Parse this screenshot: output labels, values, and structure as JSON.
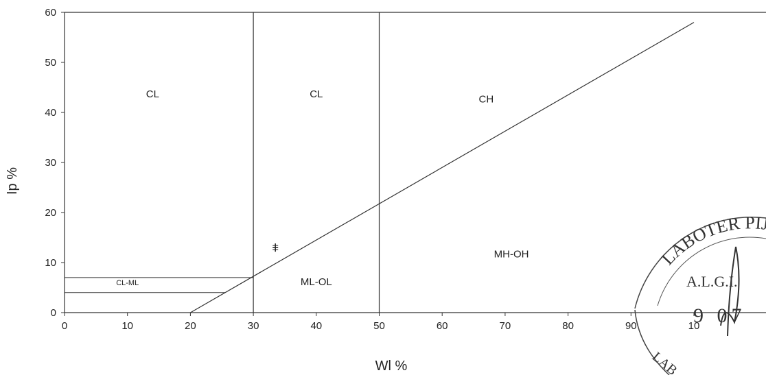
{
  "chart_data": {
    "type": "line",
    "title": "",
    "xlabel": "Wl %",
    "ylabel": "Ip %",
    "xlim": [
      0,
      100
    ],
    "ylim": [
      0,
      60
    ],
    "x_ticks": [
      "0",
      "10",
      "20",
      "30",
      "40",
      "50",
      "60",
      "70",
      "80",
      "90",
      "10"
    ],
    "y_ticks": [
      "0",
      "10",
      "20",
      "30",
      "40",
      "50",
      "60"
    ],
    "grid": false,
    "series": [
      {
        "x": [
          20,
          100
        ],
        "y": [
          0,
          58
        ]
      }
    ],
    "boundaries": {
      "vertical": [
        {
          "x": 30,
          "y": [
            0,
            60
          ]
        },
        {
          "x": 50,
          "y": [
            0,
            60
          ]
        }
      ],
      "horizontal": [
        {
          "y": 7,
          "x": [
            0,
            30
          ]
        },
        {
          "y": 4,
          "x": [
            0,
            25.5
          ]
        }
      ]
    },
    "regions": [
      {
        "label": "CL",
        "x": 14,
        "y": 43
      },
      {
        "label": "CL",
        "x": 40,
        "y": 43
      },
      {
        "label": "CH",
        "x": 67,
        "y": 42
      },
      {
        "label": "MH-OH",
        "x": 71,
        "y": 11
      },
      {
        "label": "ML-OL",
        "x": 40,
        "y": 5.5
      },
      {
        "label": "CL-ML",
        "x": 10,
        "y": 5.5,
        "size": "small"
      }
    ],
    "points": [
      {
        "x": 33.5,
        "y": 13
      }
    ]
  },
  "stamp": {
    "top_text": "LABOTER PIJ",
    "middle_text": "A.L.G.I.",
    "bottom_text": "9 07",
    "lower_text": "LAB"
  }
}
